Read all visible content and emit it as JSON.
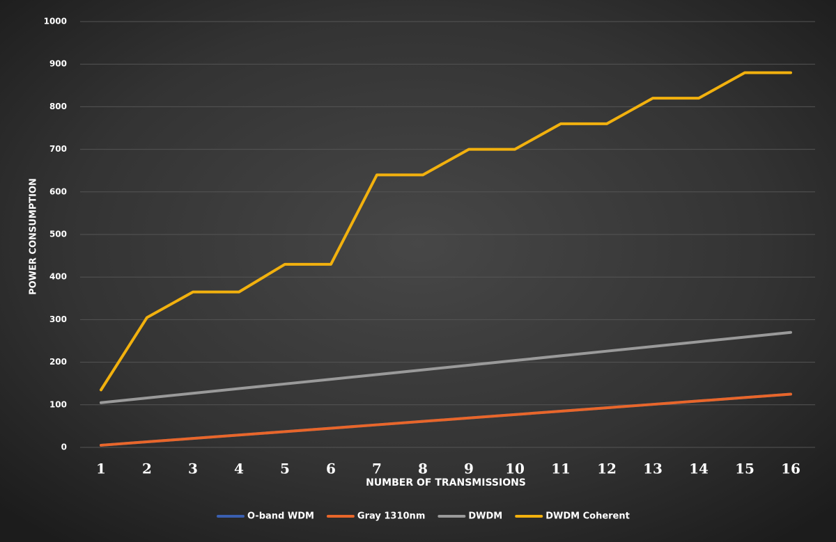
{
  "chart_data": {
    "type": "line",
    "x_label": "NUMBER OF TRANSMISSIONS",
    "y_label": "POWER CONSUMPTION",
    "x": [
      1,
      2,
      3,
      4,
      5,
      6,
      7,
      8,
      9,
      10,
      11,
      12,
      13,
      14,
      15,
      16
    ],
    "xlim": [
      1,
      16
    ],
    "xticks": [
      1,
      2,
      3,
      4,
      5,
      6,
      7,
      8,
      9,
      10,
      11,
      12,
      13,
      14,
      15,
      16
    ],
    "ylim": [
      0,
      1000
    ],
    "yticks": [
      0,
      100,
      200,
      300,
      400,
      500,
      600,
      700,
      800,
      900,
      1000
    ],
    "grid": true,
    "legend": "bottom",
    "series": [
      {
        "name": "O-band WDM",
        "color": "#3a5fb0",
        "values": [
          5,
          13,
          21,
          29,
          37,
          45,
          53,
          61,
          69,
          77,
          85,
          93,
          101,
          109,
          117,
          125
        ]
      },
      {
        "name": "Gray 1310nm",
        "color": "#e8662a",
        "values": [
          5,
          13,
          21,
          29,
          37,
          45,
          53,
          61,
          69,
          77,
          85,
          93,
          101,
          109,
          117,
          125
        ]
      },
      {
        "name": "DWDM",
        "color": "#9a9a9a",
        "values": [
          105,
          116,
          127,
          138,
          149,
          160,
          171,
          182,
          193,
          204,
          215,
          226,
          237,
          248,
          259,
          270
        ]
      },
      {
        "name": "DWDM Coherent",
        "color": "#f2b10e",
        "values": [
          135,
          305,
          365,
          365,
          430,
          430,
          640,
          640,
          700,
          700,
          760,
          760,
          820,
          820,
          880,
          880
        ]
      }
    ]
  }
}
